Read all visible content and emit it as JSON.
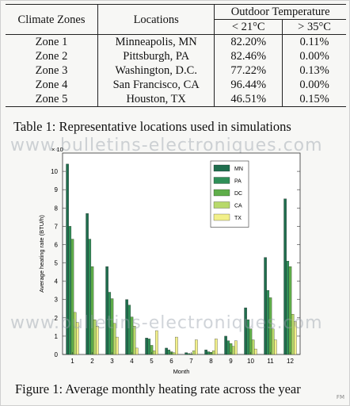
{
  "table": {
    "headers": {
      "col1": "Climate Zones",
      "col2": "Locations",
      "group": "Outdoor Temperature",
      "sub1": "< 21°C",
      "sub2": "> 35°C"
    },
    "rows": [
      {
        "zone": "Zone 1",
        "location": "Minneapolis, MN",
        "below21": "82.20%",
        "above35": "0.11%"
      },
      {
        "zone": "Zone 2",
        "location": "Pittsburgh, PA",
        "below21": "82.46%",
        "above35": "0.00%"
      },
      {
        "zone": "Zone 3",
        "location": "Washington, D.C.",
        "below21": "77.22%",
        "above35": "0.13%"
      },
      {
        "zone": "Zone 4",
        "location": "San Francisco, CA",
        "below21": "96.44%",
        "above35": "0.00%"
      },
      {
        "zone": "Zone 5",
        "location": "Houston, TX",
        "below21": "46.51%",
        "above35": "0.15%"
      }
    ],
    "caption": "Table 1: Representative locations used in simulations"
  },
  "watermark": "www.bulletins-electroniques.com",
  "figure_caption": "Figure 1: Average monthly heating rate across the year",
  "fm_mark": "FM",
  "chart_data": {
    "type": "bar",
    "ylabel": "Average heating rate (BTU/h)",
    "xlabel": "Month",
    "multiplier": "× 10",
    "ylim": [
      0,
      11
    ],
    "yticks": [
      0,
      1,
      2,
      3,
      4,
      5,
      6,
      7,
      8,
      9,
      10
    ],
    "legend_position": "top-right",
    "categories": [
      "1",
      "2",
      "3",
      "4",
      "5",
      "6",
      "7",
      "8",
      "9",
      "10",
      "11",
      "12"
    ],
    "series": [
      {
        "name": "MN",
        "color": "#1f6e4e",
        "values": [
          10.4,
          7.7,
          4.8,
          3.0,
          0.9,
          0.35,
          0.1,
          0.25,
          1.0,
          2.55,
          5.3,
          8.5
        ]
      },
      {
        "name": "PA",
        "color": "#2f8f58",
        "values": [
          7.0,
          6.3,
          3.4,
          2.7,
          0.85,
          0.25,
          0.05,
          0.15,
          0.75,
          1.9,
          3.5,
          5.1
        ]
      },
      {
        "name": "DC",
        "color": "#5fae4a",
        "values": [
          6.3,
          4.8,
          3.05,
          2.05,
          0.5,
          0.15,
          0.03,
          0.12,
          0.6,
          1.4,
          3.1,
          4.8
        ]
      },
      {
        "name": "CA",
        "color": "#b7d96a",
        "values": [
          2.3,
          1.9,
          1.7,
          1.55,
          0.2,
          0.1,
          0.2,
          0.2,
          0.45,
          0.8,
          1.4,
          2.2
        ]
      },
      {
        "name": "TX",
        "color": "#f2f08a",
        "values": [
          1.75,
          1.55,
          0.95,
          0.35,
          1.3,
          0.95,
          0.8,
          0.85,
          0.75,
          0.3,
          0.8,
          1.8
        ]
      }
    ]
  }
}
